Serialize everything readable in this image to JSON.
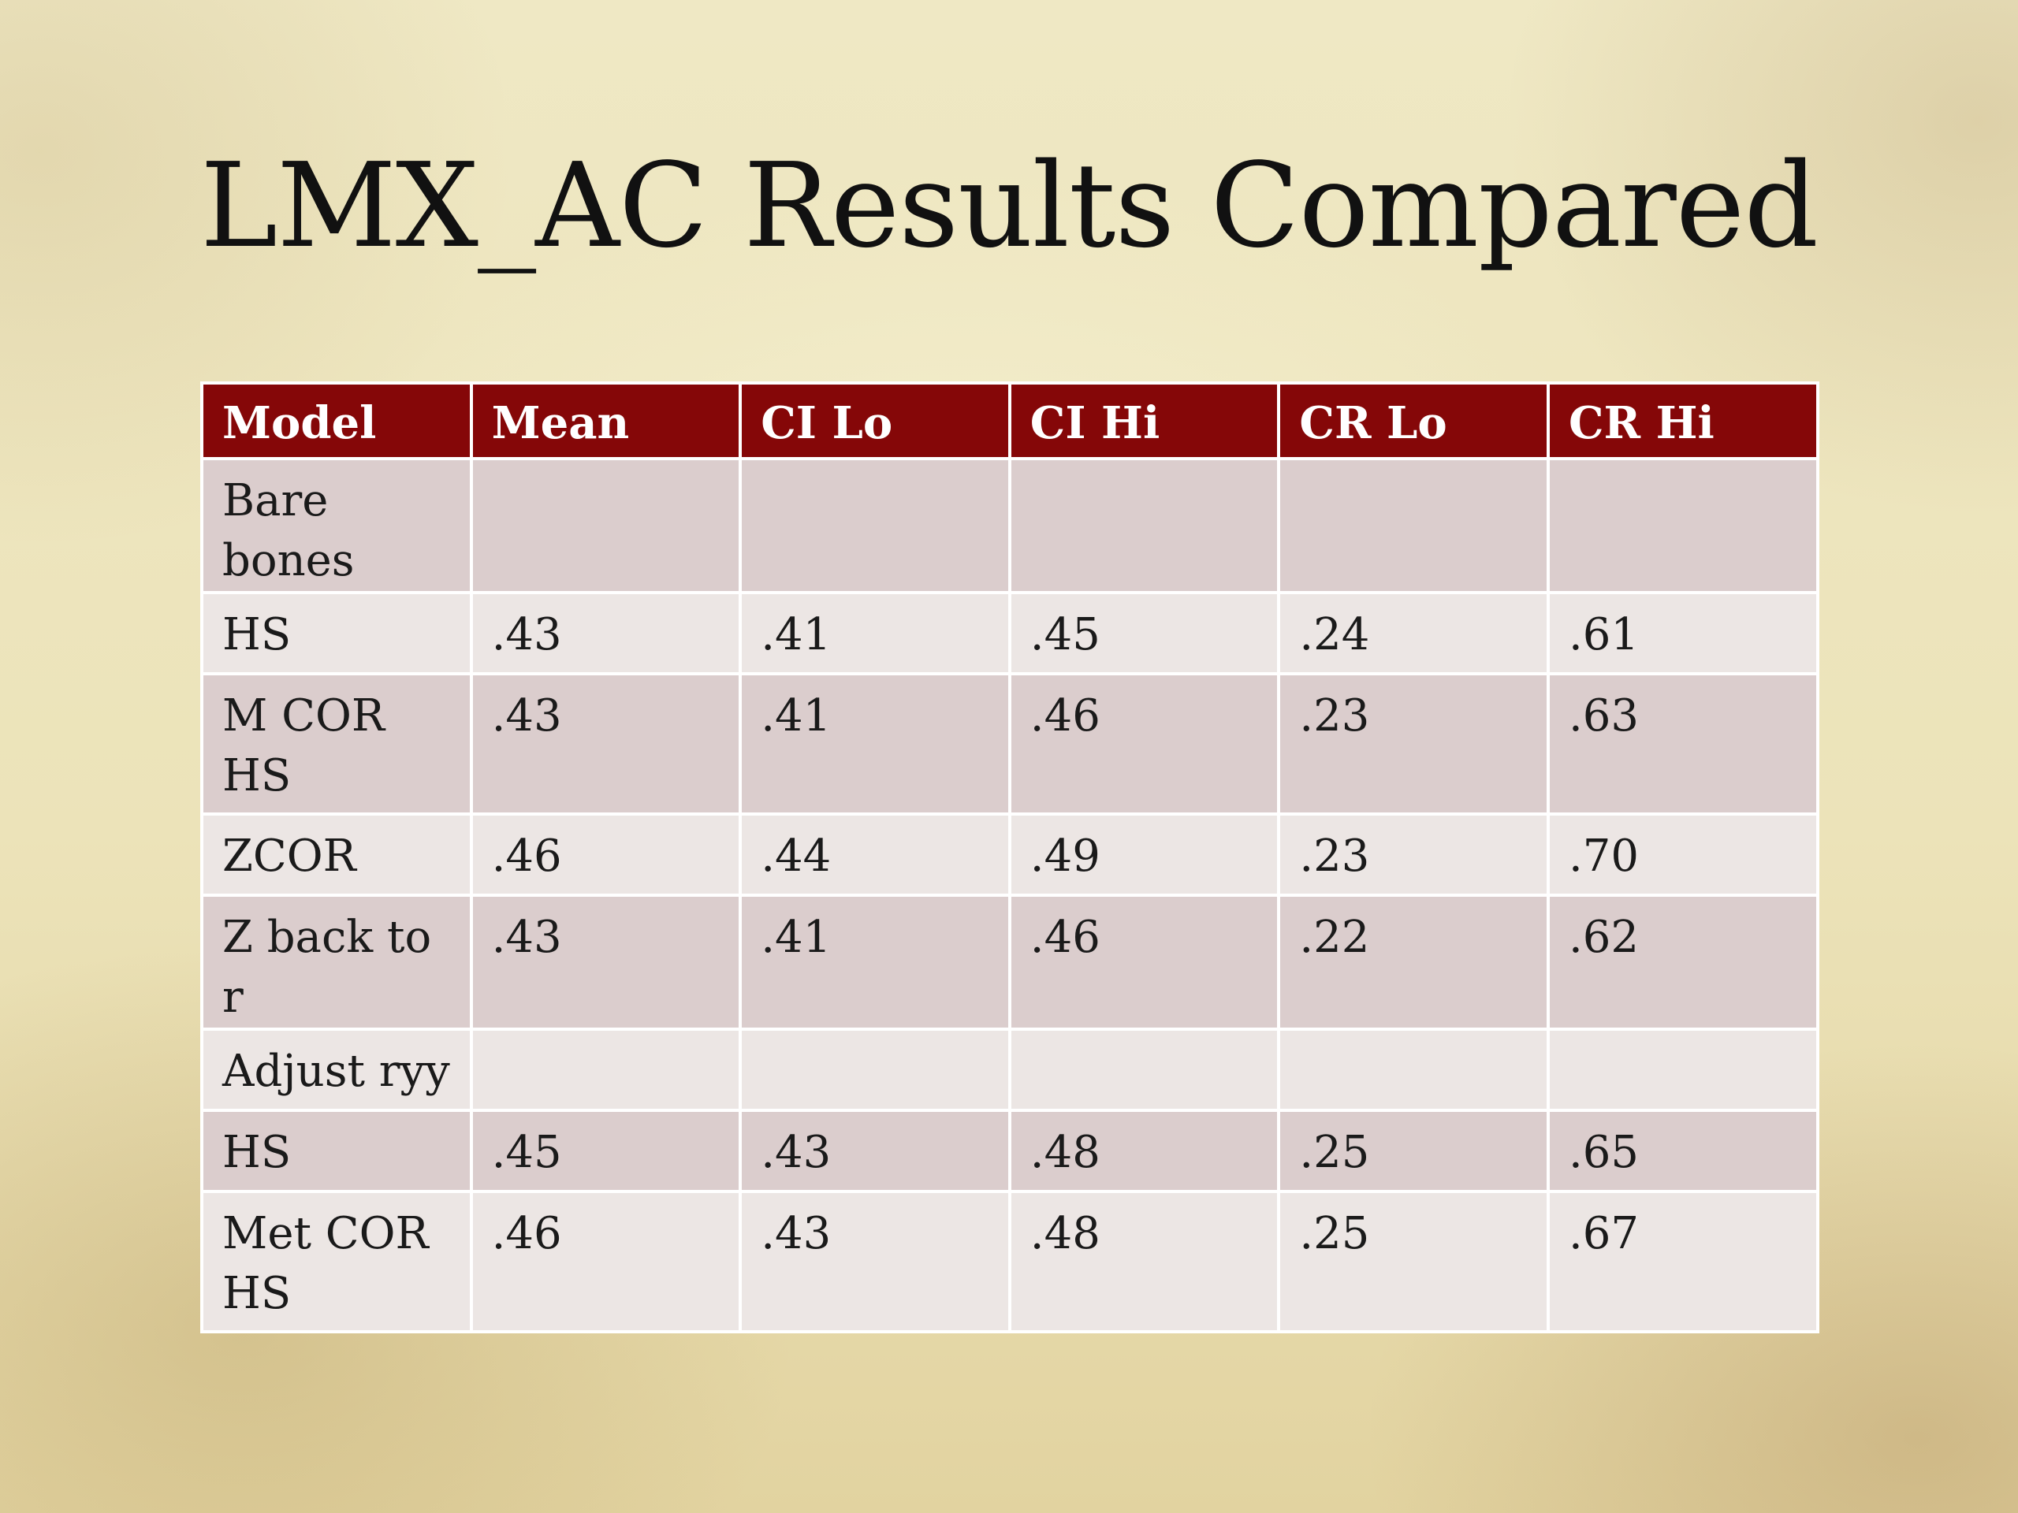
{
  "slide": {
    "title": "LMX_AC Results Compared"
  },
  "table": {
    "headers": [
      "Model",
      "Mean",
      "CI Lo",
      "CI Hi",
      "CR Lo",
      "CR Hi"
    ],
    "rows": [
      [
        "Bare bones",
        "",
        "",
        "",
        "",
        ""
      ],
      [
        "HS",
        ".43",
        ".41",
        ".45",
        ".24",
        ".61"
      ],
      [
        "M COR HS",
        ".43",
        ".41",
        ".46",
        ".23",
        ".63"
      ],
      [
        "ZCOR",
        ".46",
        ".44",
        ".49",
        ".23",
        ".70"
      ],
      [
        "Z back to r",
        ".43",
        ".41",
        ".46",
        ".22",
        ".62"
      ],
      [
        "Adjust ryy",
        "",
        "",
        "",
        "",
        ""
      ],
      [
        "HS",
        ".45",
        ".43",
        ".48",
        ".25",
        ".65"
      ],
      [
        "Met COR HS",
        ".46",
        ".43",
        ".48",
        ".25",
        ".67"
      ]
    ]
  },
  "colors": {
    "header_background": "#850708",
    "header_text": "#ffffff",
    "row_odd": "#dbcdcd",
    "row_even": "#ece6e4"
  }
}
